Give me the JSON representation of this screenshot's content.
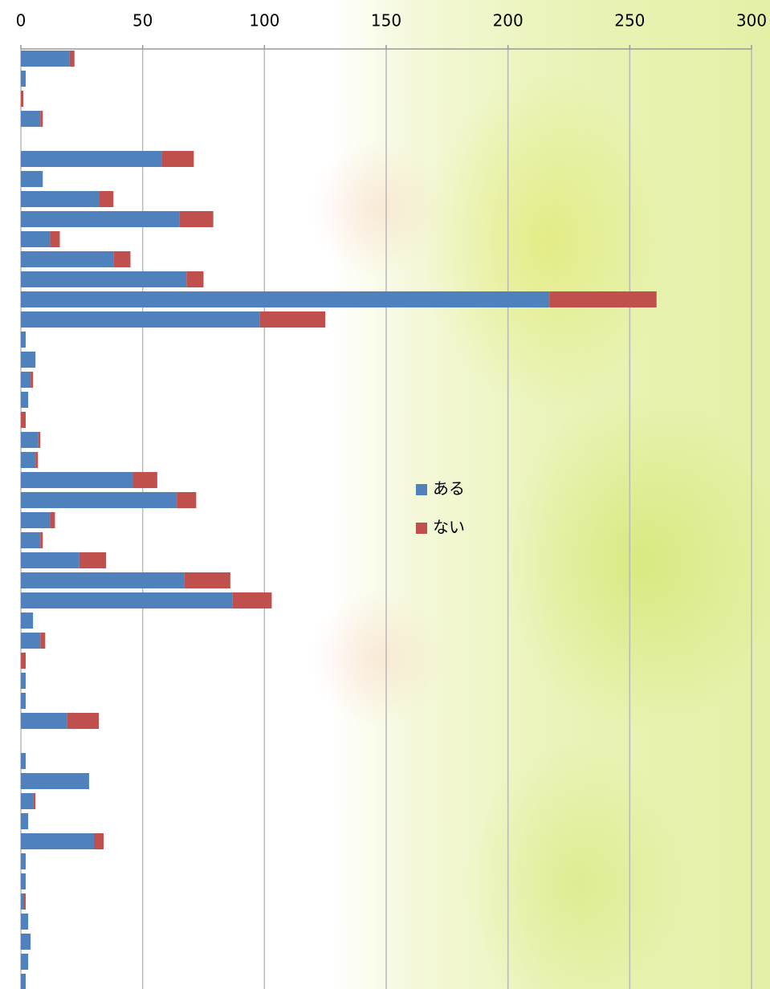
{
  "chart_data": {
    "type": "stacked-barh",
    "categories": [
      null,
      null,
      null,
      null,
      null,
      null,
      null,
      null,
      null,
      null,
      null,
      null,
      null,
      null,
      null,
      null,
      null,
      null,
      null,
      null,
      null,
      null,
      null,
      null,
      null,
      null,
      null,
      null,
      null,
      null,
      null,
      null,
      null,
      null,
      null,
      null,
      null,
      null,
      null,
      null,
      null,
      null,
      null,
      null,
      null,
      null,
      null
    ],
    "series": [
      {
        "name": "ある",
        "color": "#4f81bd",
        "values": [
          20,
          2,
          0,
          8,
          null,
          58,
          9,
          32,
          65,
          12,
          38,
          68,
          217,
          98,
          2,
          6,
          4,
          3,
          0,
          7,
          6,
          46,
          64,
          12,
          8,
          24,
          67,
          87,
          5,
          8,
          0,
          2,
          2,
          19,
          null,
          2,
          28,
          5,
          3,
          30,
          2,
          2,
          1,
          3,
          4,
          3,
          2
        ]
      },
      {
        "name": "ない",
        "color": "#c0504d",
        "values": [
          2,
          0,
          1,
          1,
          null,
          13,
          0,
          6,
          14,
          4,
          7,
          7,
          44,
          27,
          0,
          0,
          1,
          0,
          2,
          1,
          1,
          10,
          8,
          2,
          1,
          11,
          19,
          16,
          0,
          2,
          2,
          0,
          0,
          13,
          null,
          0,
          0,
          1,
          0,
          4,
          0,
          0,
          1,
          0,
          0,
          0,
          0
        ]
      }
    ],
    "xlim": [
      0,
      300
    ],
    "xticks": [
      0,
      50,
      100,
      150,
      200,
      250,
      300
    ],
    "grid": true
  }
}
